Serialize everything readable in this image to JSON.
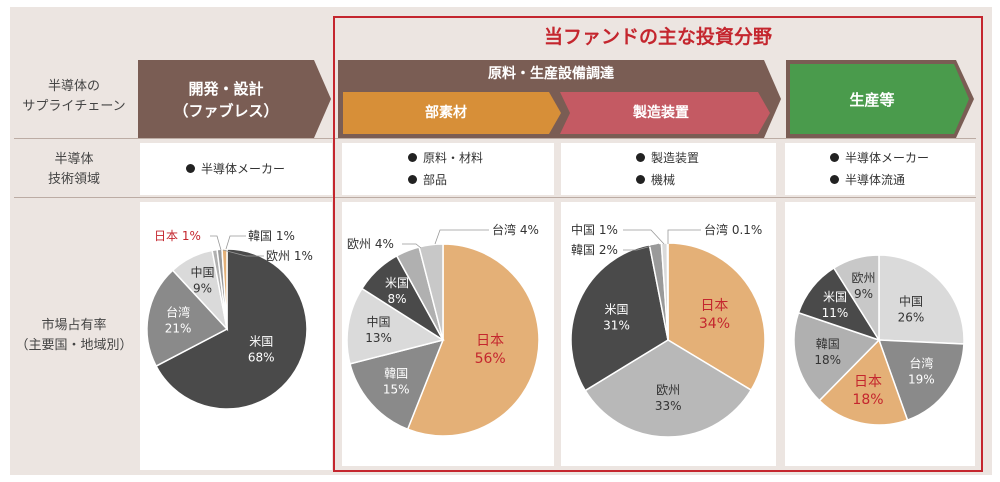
{
  "header": {
    "focus_title": "当ファンドの主な投資分野"
  },
  "rows": {
    "chain": [
      "半導体の",
      "サプライチェーン"
    ],
    "tech": [
      "半導体",
      "技術領域"
    ],
    "share": [
      "市場占有率",
      "（主要国・地域別）"
    ]
  },
  "stages": {
    "design": [
      "開発・設計",
      "（ファブレス）"
    ],
    "materials_equipment": "原料・生産設備調達",
    "materials": "部素材",
    "equipment": "製造装置",
    "production": "生産等"
  },
  "tech_fields": {
    "design": [
      "半導体メーカー"
    ],
    "materials": [
      "原料・材料",
      "部品"
    ],
    "equipment": [
      "製造装置",
      "機械"
    ],
    "production": [
      "半導体メーカー",
      "半導体流通"
    ]
  },
  "colors": {
    "brown": "#7a5d54",
    "orange": "#d78f38",
    "rose": "#c45a63",
    "green": "#4a9b4c",
    "focus_red": "#c4262e",
    "japan_slice": "#e4b077",
    "japan_text": "#c4262e"
  },
  "chart_data": [
    {
      "type": "pie",
      "slices": [
        {
          "label": "米国",
          "value": 68,
          "value_text": "68%",
          "color": "#4a4a4a"
        },
        {
          "label": "台湾",
          "value": 21,
          "value_text": "21%",
          "color": "#8a8a8a"
        },
        {
          "label": "中国",
          "value": 9,
          "value_text": "9%",
          "color": "#dadada"
        },
        {
          "label": "欧州",
          "value": 1,
          "value_text": "1%",
          "color": "#b0b0b0"
        },
        {
          "label": "韓国",
          "value": 1,
          "value_text": "1%",
          "color": "#9a9a9a"
        },
        {
          "label": "日本",
          "value": 1,
          "value_text": "1%",
          "color": "#e4b077"
        }
      ]
    },
    {
      "type": "pie",
      "slices": [
        {
          "label": "日本",
          "value": 56,
          "value_text": "56%",
          "color": "#e4b077"
        },
        {
          "label": "韓国",
          "value": 15,
          "value_text": "15%",
          "color": "#8a8a8a"
        },
        {
          "label": "中国",
          "value": 13,
          "value_text": "13%",
          "color": "#dadada"
        },
        {
          "label": "米国",
          "value": 8,
          "value_text": "8%",
          "color": "#4a4a4a"
        },
        {
          "label": "欧州",
          "value": 4,
          "value_text": "4%",
          "color": "#b0b0b0"
        },
        {
          "label": "台湾",
          "value": 4,
          "value_text": "4%",
          "color": "#c8c8c8"
        }
      ]
    },
    {
      "type": "pie",
      "slices": [
        {
          "label": "日本",
          "value": 34,
          "value_text": "34%",
          "color": "#e4b077"
        },
        {
          "label": "欧州",
          "value": 33,
          "value_text": "33%",
          "color": "#b8b8b8"
        },
        {
          "label": "米国",
          "value": 31,
          "value_text": "31%",
          "color": "#4a4a4a"
        },
        {
          "label": "韓国",
          "value": 2,
          "value_text": "2%",
          "color": "#9a9a9a"
        },
        {
          "label": "中国",
          "value": 1,
          "value_text": "1%",
          "color": "#dadada"
        },
        {
          "label": "台湾",
          "value": 0.1,
          "value_text": "0.1%",
          "color": "#c8c8c8"
        }
      ]
    },
    {
      "type": "pie",
      "slices": [
        {
          "label": "中国",
          "value": 26,
          "value_text": "26%",
          "color": "#dadada"
        },
        {
          "label": "台湾",
          "value": 19,
          "value_text": "19%",
          "color": "#8a8a8a"
        },
        {
          "label": "日本",
          "value": 18,
          "value_text": "18%",
          "color": "#e4b077"
        },
        {
          "label": "韓国",
          "value": 18,
          "value_text": "18%",
          "color": "#b0b0b0"
        },
        {
          "label": "米国",
          "value": 11,
          "value_text": "11%",
          "color": "#4a4a4a"
        },
        {
          "label": "欧州",
          "value": 9,
          "value_text": "9%",
          "color": "#c8c8c8"
        }
      ]
    }
  ]
}
